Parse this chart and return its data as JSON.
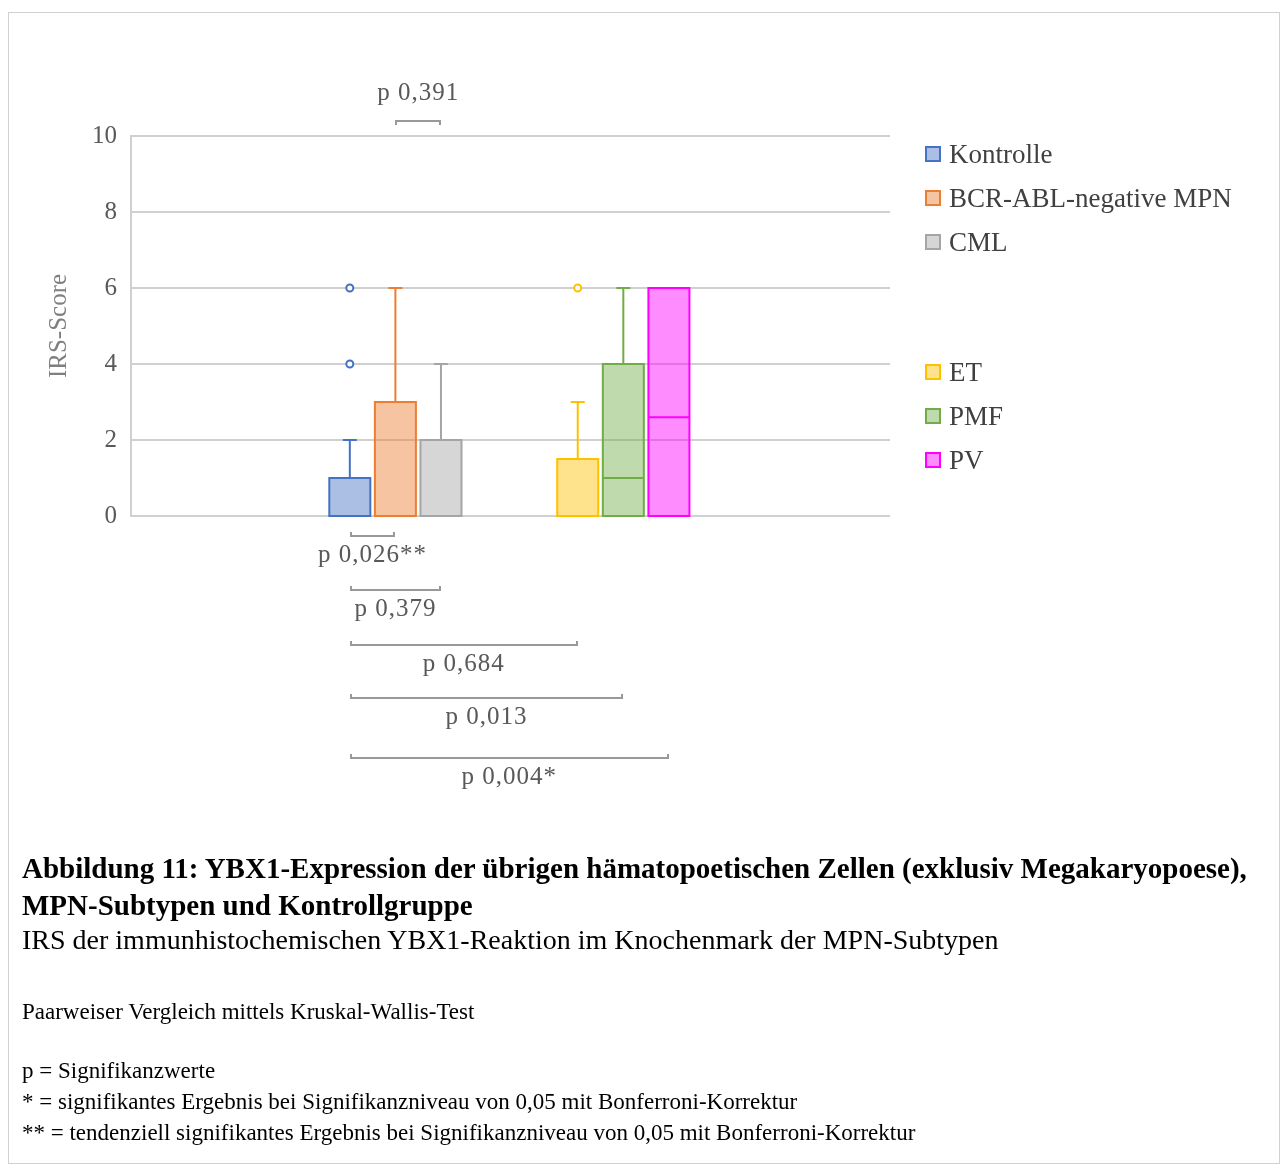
{
  "chart_data": {
    "type": "box",
    "title": "Abbildung 11: YBX1-Expression der übrigen hämatopoetischen Zellen (exklusiv Megakaryopoese), MPN-Subtypen und Kontrollgruppe",
    "subtitle": "IRS der immunhistochemischen YBX1-Reaktion im Knochenmark der MPN-Subtypen",
    "ylabel": "IRS-Score",
    "categories": [
      null,
      null
    ],
    "series": [
      {
        "name": "Kontrolle",
        "color": "#4472c4",
        "boxes": [
          {
            "low": 0,
            "q1": 0,
            "median": 0,
            "q3": 1,
            "high": 2,
            "outliers": [
              4,
              6
            ]
          },
          null
        ]
      },
      {
        "name": "BCR-ABL-negative MPN",
        "color": "#ed7d31",
        "boxes": [
          {
            "low": 0,
            "q1": 0,
            "median": 0,
            "q3": 3,
            "high": 6
          },
          null
        ]
      },
      {
        "name": "CML",
        "color": "#a5a5a5",
        "boxes": [
          {
            "low": 0,
            "q1": 0,
            "median": 0,
            "q3": 2,
            "high": 4
          },
          null
        ]
      },
      {
        "name": "ET",
        "color": "#ffc000",
        "boxes": [
          null,
          {
            "low": 0,
            "q1": 0,
            "median": 0,
            "q3": 1.5,
            "high": 3,
            "outliers": [
              6
            ]
          }
        ]
      },
      {
        "name": "PMF",
        "color": "#70ad47",
        "boxes": [
          null,
          {
            "low": 0,
            "q1": 0,
            "median": 1,
            "q3": 4,
            "high": 6
          }
        ]
      },
      {
        "name": "PV",
        "color": "#ff00ff",
        "boxes": [
          null,
          {
            "low": 0,
            "q1": 0,
            "median": 2.6,
            "q3": 6,
            "high": 6
          }
        ]
      }
    ],
    "ylim": [
      0,
      10
    ],
    "yticks": [
      0,
      2,
      4,
      6,
      8,
      10
    ],
    "grid": "y",
    "legend": "right",
    "annotations": [
      "p 0,391",
      "p 0,026**",
      "p 0,379",
      "p 0,684",
      "p 0,013",
      "p 0,004*",
      "Paarweiser Vergleich mittels Kruskal-Wallis-Test",
      "p = Signifikanzwerte",
      "* = signifikantes Ergebnis bei Signifikanzniveau von 0,05 mit Bonferroni-Korrektur",
      "** = tendenziell signifikantes Ergebnis bei Signifikanzniveau von 0,05 mit Bonferroni-Korrektur"
    ]
  }
}
